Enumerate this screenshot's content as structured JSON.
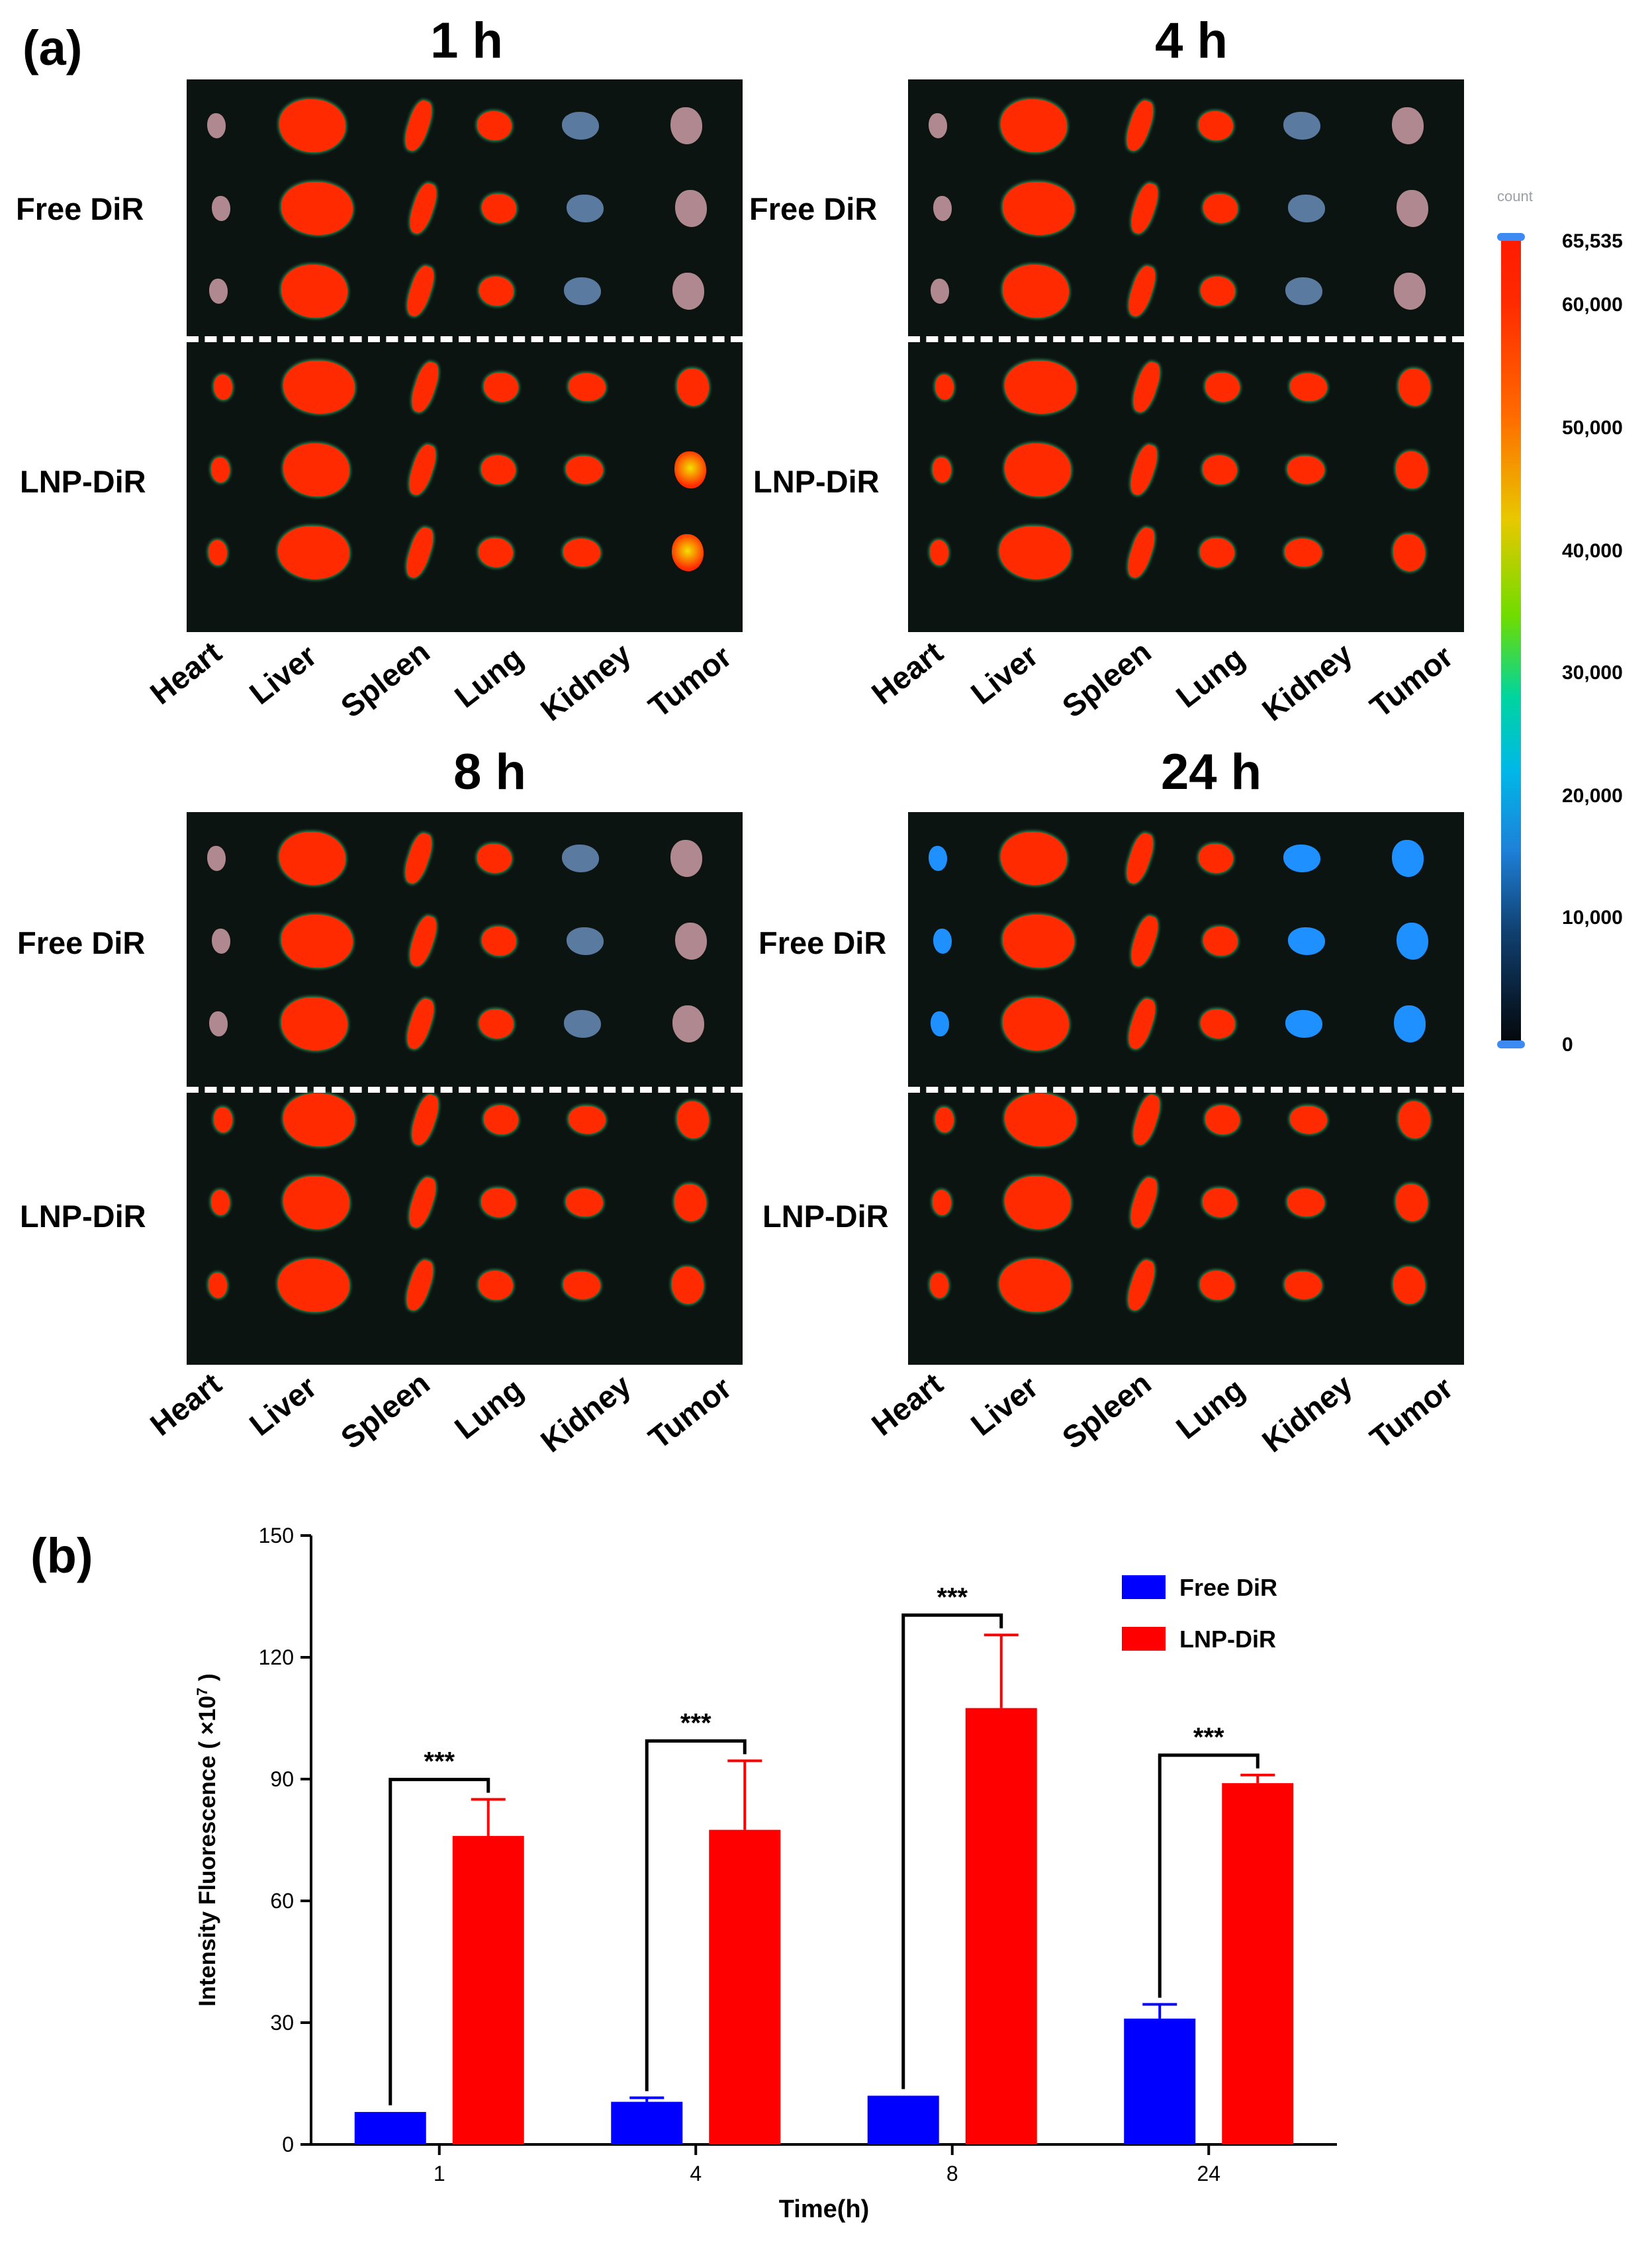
{
  "panel_a": {
    "label": "(a)",
    "panels": [
      {
        "time": "1 h"
      },
      {
        "time": "4 h"
      },
      {
        "time": "8 h"
      },
      {
        "time": "24 h"
      }
    ],
    "group_labels": [
      "Free DiR",
      "LNP-DiR"
    ],
    "organs": [
      "Heart",
      "Liver",
      "Spleen",
      "Lung",
      "Kidney",
      "Tumor"
    ],
    "colorbar": {
      "title": "count",
      "ticks": [
        "65,535",
        "60,000",
        "50,000",
        "40,000",
        "30,000",
        "20,000",
        "10,000",
        "0"
      ]
    },
    "colors": {
      "high": "#ff2a00",
      "mid": "#f4e000",
      "low": "#1e90ff",
      "background": "#0c1412"
    }
  },
  "panel_b": {
    "label": "(b)"
  },
  "chart_data": {
    "type": "bar",
    "title": "",
    "xlabel": "Time(h)",
    "ylabel": "Intensity Fluorescence ( ×10",
    "ylabel_sup": "7",
    "ylabel_end": ")",
    "categories": [
      "1",
      "4",
      "8",
      "24"
    ],
    "ylim": [
      0,
      150
    ],
    "yticks": [
      "0",
      "30",
      "60",
      "90",
      "120",
      "150"
    ],
    "series": [
      {
        "name": "Free DiR",
        "color": "#0000ff",
        "values": [
          8,
          10.5,
          12,
          31
        ],
        "errors": [
          0,
          1,
          0,
          3.5
        ]
      },
      {
        "name": "LNP-DiR",
        "color": "#ff0000",
        "values": [
          76,
          77.5,
          107.5,
          89
        ],
        "errors": [
          9,
          17,
          18,
          2
        ]
      }
    ],
    "significance": [
      "***",
      "***",
      "***",
      "***"
    ],
    "legend_position": "top-right"
  }
}
